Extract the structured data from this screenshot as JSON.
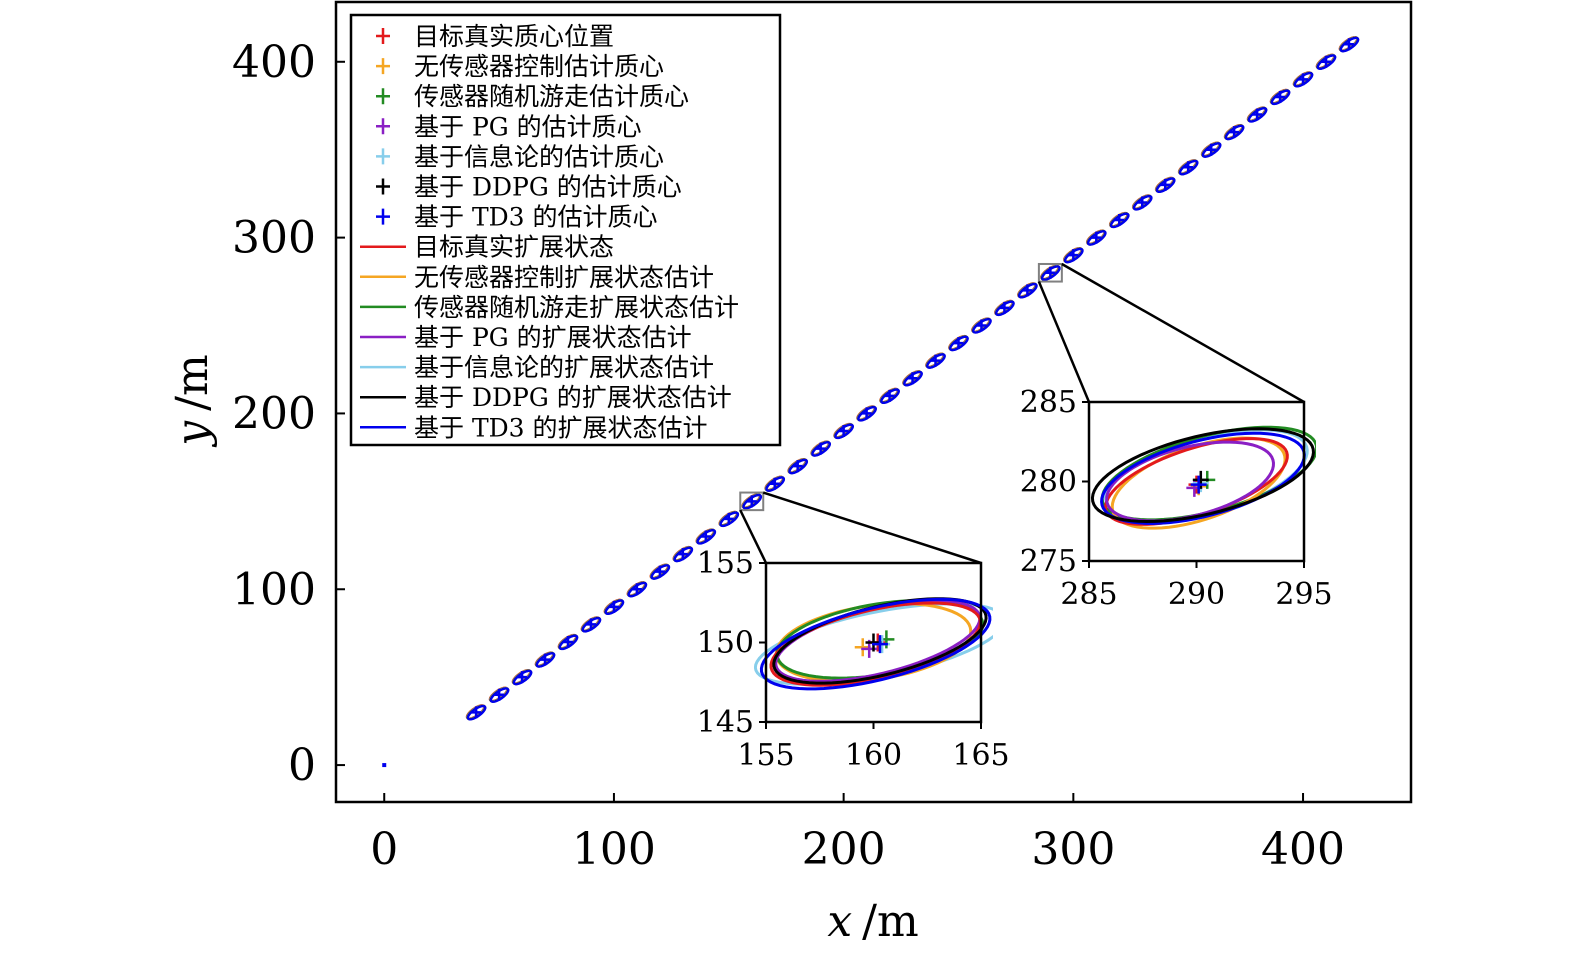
{
  "chart_data": {
    "type": "scatter",
    "title": "",
    "xlabel_var": "x",
    "xlabel_unit": "/m",
    "ylabel_var": "y",
    "ylabel_unit": "/m",
    "xlim": [
      -21,
      447
    ],
    "ylim": [
      -21,
      434
    ],
    "xticks": [
      0,
      100,
      200,
      300,
      400
    ],
    "yticks": [
      0,
      100,
      200,
      300,
      400
    ],
    "grid": false,
    "legend_position": "top-left",
    "series": [
      {
        "name": "目标真实质心位置",
        "kind": "marker",
        "color": "#e31a1c"
      },
      {
        "name": "无传感器控制估计质心",
        "kind": "marker",
        "color": "#f5a623"
      },
      {
        "name": "传感器随机游走估计质心",
        "kind": "marker",
        "color": "#228b22"
      },
      {
        "name": "基于 PG 的估计质心",
        "kind": "marker",
        "color": "#8a1fc4"
      },
      {
        "name": "基于信息论的估计质心",
        "kind": "marker",
        "color": "#87ceeb"
      },
      {
        "name": "基于 DDPG 的估计质心",
        "kind": "marker",
        "color": "#000000"
      },
      {
        "name": "基于 TD3 的估计质心",
        "kind": "marker",
        "color": "#0000ee"
      },
      {
        "name": "目标真实扩展状态",
        "kind": "line",
        "color": "#e31a1c"
      },
      {
        "name": "无传感器控制扩展状态估计",
        "kind": "line",
        "color": "#f5a623"
      },
      {
        "name": "传感器随机游走扩展状态估计",
        "kind": "line",
        "color": "#228b22"
      },
      {
        "name": "基于 PG 的扩展状态估计",
        "kind": "line",
        "color": "#8a1fc4"
      },
      {
        "name": "基于信息论的扩展状态估计",
        "kind": "line",
        "color": "#87ceeb"
      },
      {
        "name": "基于 DDPG 的扩展状态估计",
        "kind": "line",
        "color": "#000000"
      },
      {
        "name": "基于 TD3 的扩展状态估计",
        "kind": "line",
        "color": "#0000ee"
      }
    ],
    "trajectory": {
      "start": [
        40,
        30
      ],
      "end": [
        420,
        410
      ],
      "step": [
        10,
        10
      ],
      "ellipse_semi_axes": [
        5,
        1.9
      ],
      "ellipse_angle_deg": 45,
      "sensor_point": [
        0,
        0
      ]
    },
    "insets": [
      {
        "zoom_box": {
          "x": [
            155,
            165
          ],
          "y": [
            145,
            155
          ]
        },
        "xlim": [
          155,
          165
        ],
        "ylim": [
          145,
          155
        ],
        "xticks": [
          155,
          160,
          165
        ],
        "yticks": [
          145,
          150,
          155
        ],
        "centroids": {
          "目标真实质心位置": [
            160.2,
            150.0
          ],
          "无传感器控制估计质心": [
            159.5,
            149.7
          ],
          "传感器随机游走估计质心": [
            160.6,
            150.2
          ],
          "基于 PG 的估计质心": [
            159.8,
            149.6
          ],
          "基于信息论的估计质心": [
            160.4,
            149.9
          ],
          "基于 DDPG 的估计质心": [
            160.0,
            150.0
          ],
          "基于 TD3 的估计质心": [
            160.3,
            149.9
          ]
        },
        "ellipses": [
          {
            "series": "基于信息论的扩展状态估计",
            "cx": 160.3,
            "cy": 149.9,
            "a": 6.0,
            "b": 2.0,
            "angle": 16
          },
          {
            "series": "无传感器控制扩展状态估计",
            "cx": 160.0,
            "cy": 150.0,
            "a": 4.6,
            "b": 2.3,
            "angle": 12
          },
          {
            "series": "传感器随机游走扩展状态估计",
            "cx": 160.3,
            "cy": 150.2,
            "a": 4.9,
            "b": 2.2,
            "angle": 14
          },
          {
            "series": "基于 PG 的扩展状态估计",
            "cx": 160.2,
            "cy": 150.1,
            "a": 5.0,
            "b": 2.0,
            "angle": 20
          },
          {
            "series": "目标真实扩展状态",
            "cx": 160.1,
            "cy": 149.9,
            "a": 5.1,
            "b": 2.1,
            "angle": 19
          },
          {
            "series": "基于 DDPG 的扩展状态估计",
            "cx": 160.3,
            "cy": 150.1,
            "a": 5.2,
            "b": 2.1,
            "angle": 20
          },
          {
            "series": "基于 TD3 的扩展状态估计",
            "cx": 160.1,
            "cy": 149.9,
            "a": 5.6,
            "b": 2.2,
            "angle": 20
          }
        ]
      },
      {
        "zoom_box": {
          "x": [
            285,
            295
          ],
          "y": [
            275,
            285
          ]
        },
        "xlim": [
          285,
          295
        ],
        "ylim": [
          275,
          285
        ],
        "xticks": [
          285,
          290,
          295
        ],
        "yticks": [
          275,
          280,
          285
        ],
        "centroids": {
          "目标真实质心位置": [
            290.0,
            279.8
          ],
          "无传感器控制估计质心": [
            290.1,
            279.7
          ],
          "传感器随机游走估计质心": [
            290.5,
            280.1
          ],
          "基于 PG 的估计质心": [
            289.9,
            279.6
          ],
          "基于信息论的估计质心": [
            290.2,
            279.9
          ],
          "基于 DDPG 的估计质心": [
            290.2,
            280.1
          ],
          "基于 TD3 的估计质心": [
            290.1,
            279.8
          ]
        },
        "ellipses": [
          {
            "series": "基于信息论的扩展状态估计",
            "cx": 290.4,
            "cy": 280.3,
            "a": 5.1,
            "b": 2.3,
            "angle": 24
          },
          {
            "series": "传感器随机游走扩展状态估计",
            "cx": 290.6,
            "cy": 280.5,
            "a": 5.3,
            "b": 2.3,
            "angle": 22
          },
          {
            "series": "无传感器控制扩展状态估计",
            "cx": 290.1,
            "cy": 279.9,
            "a": 4.4,
            "b": 2.2,
            "angle": 28
          },
          {
            "series": "目标真实扩展状态",
            "cx": 290.0,
            "cy": 280.0,
            "a": 4.6,
            "b": 2.0,
            "angle": 26
          },
          {
            "series": "基于 PG 的扩展状态估计",
            "cx": 289.7,
            "cy": 280.0,
            "a": 4.1,
            "b": 2.1,
            "angle": 22
          },
          {
            "series": "基于 TD3 的扩展状态估计",
            "cx": 290.3,
            "cy": 280.2,
            "a": 5.0,
            "b": 2.3,
            "angle": 22
          },
          {
            "series": "基于 DDPG 的扩展状态估计",
            "cx": 290.3,
            "cy": 280.4,
            "a": 5.4,
            "b": 2.4,
            "angle": 20
          }
        ]
      }
    ]
  }
}
